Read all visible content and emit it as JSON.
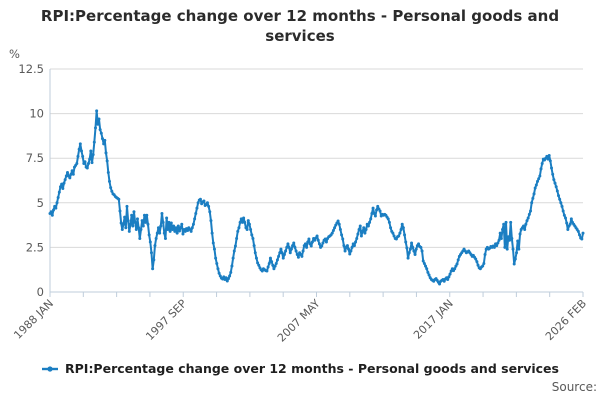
{
  "title": "RPI:Percentage change over 12 months - Personal goods and services",
  "legend": {
    "label": "RPI:Percentage change over 12 months - Personal goods and services"
  },
  "source": {
    "label": "Source:"
  },
  "colors": {
    "line": "#1b7ec2",
    "grid": "#d9d9d9",
    "axis": "#bfcddb",
    "tick_text": "#595959",
    "title_text": "#2b2b2b"
  },
  "y_axis": {
    "unit_label": "%",
    "ticks": [
      {
        "v": 0,
        "label": "0"
      },
      {
        "v": 2.5,
        "label": "2.5"
      },
      {
        "v": 5,
        "label": "5"
      },
      {
        "v": 7.5,
        "label": "7.5"
      },
      {
        "v": 10,
        "label": "10"
      },
      {
        "v": 12.5,
        "label": "12.5"
      }
    ]
  },
  "x_axis": {
    "tick_count": 17,
    "label_every": 4,
    "labels": [
      "1988 JAN",
      "1997 SEP",
      "2007 MAY",
      "2017 JAN",
      "2026 FEB"
    ]
  },
  "chart_data": {
    "type": "line",
    "title": "RPI:Percentage change over 12 months - Personal goods and services",
    "ylabel": "%",
    "ylim": [
      0,
      12.5
    ],
    "grid": true,
    "legend_position": "bottom",
    "x_start": "1988-01",
    "x_end": "2026-02",
    "frequency": "monthly",
    "series_name": "RPI:Percentage change over 12 months - Personal goods and services",
    "values": [
      4.4,
      4.5,
      4.3,
      4.6,
      4.8,
      4.7,
      5.0,
      5.3,
      5.6,
      5.9,
      6.05,
      5.8,
      6.1,
      6.3,
      6.5,
      6.7,
      6.5,
      6.4,
      6.6,
      6.8,
      6.6,
      7.0,
      7.1,
      7.2,
      7.6,
      8.0,
      8.3,
      7.9,
      7.6,
      7.2,
      7.3,
      7.0,
      6.95,
      7.2,
      7.45,
      7.9,
      7.25,
      7.7,
      8.4,
      9.2,
      10.15,
      9.4,
      9.7,
      9.1,
      8.9,
      8.6,
      8.3,
      8.5,
      7.8,
      7.35,
      6.7,
      6.2,
      5.85,
      5.65,
      5.5,
      5.45,
      5.35,
      5.3,
      5.25,
      5.2,
      4.54,
      3.87,
      3.5,
      3.8,
      4.2,
      3.6,
      4.8,
      4.0,
      3.4,
      3.8,
      4.3,
      3.7,
      4.5,
      3.9,
      3.5,
      4.1,
      3.6,
      3.0,
      3.5,
      4.0,
      3.7,
      4.3,
      3.9,
      4.3,
      3.8,
      3.2,
      2.8,
      2.2,
      1.3,
      1.8,
      2.6,
      3.0,
      3.3,
      3.6,
      3.3,
      3.7,
      4.4,
      3.9,
      3.3,
      3.0,
      4.15,
      3.5,
      3.9,
      3.4,
      3.87,
      3.5,
      3.7,
      3.4,
      3.6,
      3.3,
      3.7,
      3.42,
      3.6,
      3.8,
      3.25,
      3.5,
      3.4,
      3.55,
      3.45,
      3.6,
      3.5,
      3.4,
      3.6,
      3.8,
      4.1,
      4.4,
      4.7,
      5.0,
      5.15,
      5.2,
      4.95,
      5.05,
      5.1,
      4.85,
      4.9,
      5.0,
      4.8,
      4.5,
      4.0,
      3.3,
      2.75,
      2.4,
      1.9,
      1.6,
      1.3,
      1.05,
      0.9,
      0.78,
      0.73,
      0.85,
      0.7,
      0.8,
      0.62,
      0.75,
      0.9,
      1.1,
      1.46,
      1.9,
      2.3,
      2.58,
      3.0,
      3.4,
      3.6,
      3.9,
      4.1,
      3.9,
      4.15,
      3.9,
      3.6,
      3.5,
      4.0,
      3.8,
      3.5,
      3.2,
      3.0,
      2.6,
      2.2,
      1.9,
      1.63,
      1.5,
      1.35,
      1.25,
      1.18,
      1.3,
      1.25,
      1.2,
      1.18,
      1.4,
      1.6,
      1.9,
      1.7,
      1.5,
      1.3,
      1.45,
      1.6,
      1.8,
      2.0,
      2.2,
      2.4,
      2.2,
      1.9,
      2.1,
      2.3,
      2.5,
      2.7,
      2.5,
      2.2,
      2.4,
      2.6,
      2.75,
      2.5,
      2.3,
      2.1,
      1.95,
      2.2,
      2.1,
      2.0,
      2.3,
      2.6,
      2.7,
      2.5,
      2.8,
      2.97,
      2.7,
      2.58,
      2.8,
      3.0,
      2.9,
      3.03,
      3.14,
      2.9,
      2.7,
      2.5,
      2.58,
      2.75,
      2.9,
      2.97,
      2.8,
      3.0,
      3.1,
      3.14,
      3.2,
      3.3,
      3.45,
      3.6,
      3.75,
      3.87,
      3.98,
      3.8,
      3.5,
      3.2,
      2.97,
      2.6,
      2.3,
      2.5,
      2.6,
      2.4,
      2.13,
      2.3,
      2.5,
      2.7,
      2.6,
      2.8,
      3.0,
      3.25,
      3.5,
      3.7,
      3.14,
      3.4,
      3.6,
      3.3,
      3.5,
      3.8,
      3.7,
      3.9,
      4.1,
      4.4,
      4.7,
      4.4,
      4.26,
      4.6,
      4.8,
      4.65,
      4.54,
      4.26,
      4.35,
      4.3,
      4.35,
      4.3,
      4.2,
      4.1,
      3.9,
      3.6,
      3.4,
      3.3,
      3.14,
      3.0,
      2.97,
      3.1,
      3.14,
      3.3,
      3.5,
      3.8,
      3.6,
      3.2,
      2.8,
      2.47,
      1.9,
      2.2,
      2.4,
      2.75,
      2.5,
      2.3,
      2.1,
      2.4,
      2.6,
      2.7,
      2.55,
      2.5,
      2.3,
      1.74,
      1.6,
      1.45,
      1.3,
      1.1,
      0.95,
      0.8,
      0.7,
      0.65,
      0.6,
      0.7,
      0.75,
      0.65,
      0.55,
      0.45,
      0.6,
      0.65,
      0.7,
      0.6,
      0.73,
      0.8,
      0.7,
      0.85,
      1.0,
      1.18,
      1.3,
      1.2,
      1.3,
      1.45,
      1.57,
      1.8,
      2.0,
      2.1,
      2.2,
      2.3,
      2.4,
      2.3,
      2.2,
      2.25,
      2.3,
      2.2,
      2.1,
      2.0,
      2.05,
      1.95,
      1.85,
      1.7,
      1.5,
      1.35,
      1.3,
      1.4,
      1.46,
      1.6,
      2.1,
      2.4,
      2.5,
      2.4,
      2.45,
      2.55,
      2.5,
      2.58,
      2.5,
      2.7,
      2.6,
      2.75,
      2.9,
      3.3,
      3.0,
      3.5,
      3.8,
      2.5,
      3.9,
      2.4,
      3.1,
      2.9,
      3.9,
      3.0,
      2.4,
      1.57,
      1.85,
      2.2,
      2.86,
      2.4,
      3.25,
      3.5,
      3.6,
      3.7,
      3.5,
      3.8,
      4.0,
      4.15,
      4.35,
      4.54,
      5.0,
      5.25,
      5.5,
      5.83,
      6.0,
      6.2,
      6.35,
      6.5,
      6.9,
      7.2,
      7.45,
      7.4,
      7.5,
      7.6,
      7.45,
      7.65,
      7.35,
      6.95,
      6.6,
      6.3,
      6.1,
      5.9,
      5.66,
      5.4,
      5.2,
      5.0,
      4.8,
      4.54,
      4.3,
      4.15,
      3.87,
      3.5,
      3.7,
      3.8,
      4.1,
      3.9,
      3.8,
      3.7,
      3.6,
      3.5,
      3.4,
      3.2,
      3.03,
      2.97,
      3.3
    ]
  }
}
